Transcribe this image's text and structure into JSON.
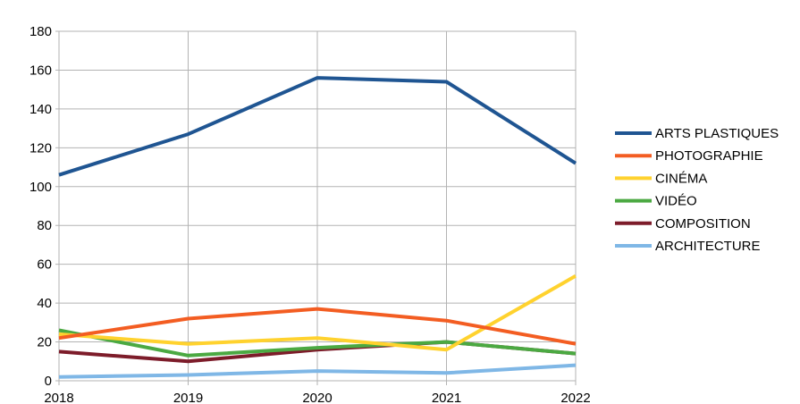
{
  "chart_data": {
    "type": "line",
    "title": "",
    "xlabel": "",
    "ylabel": "",
    "x": [
      "2018",
      "2019",
      "2020",
      "2021",
      "2022"
    ],
    "ylim": [
      0,
      180
    ],
    "yticks": [
      0,
      20,
      40,
      60,
      80,
      100,
      120,
      140,
      160,
      180
    ],
    "grid": true,
    "legend_position": "right",
    "series": [
      {
        "name": "ARTS PLASTIQUES",
        "color": "#1f5592",
        "values": [
          106,
          127,
          156,
          154,
          112
        ]
      },
      {
        "name": "PHOTOGRAPHIE",
        "color": "#f35d22",
        "values": [
          22,
          32,
          37,
          31,
          19
        ]
      },
      {
        "name": "CINÉMA",
        "color": "#ffd22e",
        "values": [
          24,
          19,
          22,
          16,
          54
        ]
      },
      {
        "name": "VIDÉO",
        "color": "#4ba942",
        "values": [
          26,
          13,
          17,
          20,
          14
        ]
      },
      {
        "name": "COMPOSITION",
        "color": "#7d1c2a",
        "values": [
          15,
          10,
          16,
          20,
          14
        ]
      },
      {
        "name": "ARCHITECTURE",
        "color": "#7fb7e6",
        "values": [
          2,
          3,
          5,
          4,
          8
        ]
      }
    ]
  }
}
